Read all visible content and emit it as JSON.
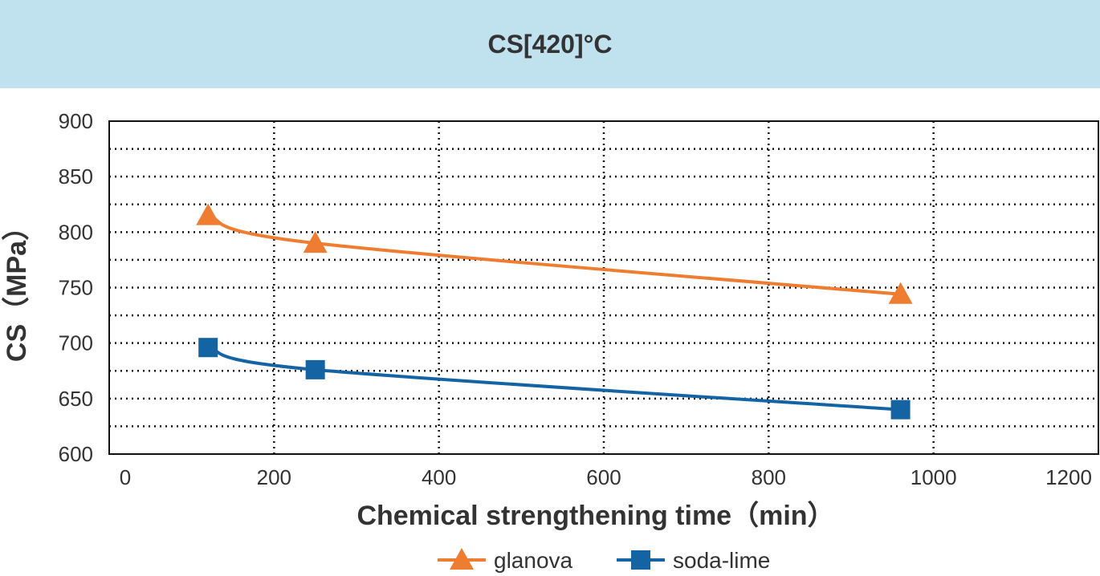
{
  "chart_data": {
    "type": "line",
    "title": "CS[420]°C",
    "xlabel": "Chemical strengthening time（min）",
    "ylabel": "CS（MPa）",
    "xlim": [
      0,
      1200
    ],
    "ylim": [
      600,
      900
    ],
    "xticks": [
      0,
      200,
      400,
      600,
      800,
      1000,
      1200
    ],
    "yticks": [
      600,
      650,
      700,
      750,
      800,
      850,
      900
    ],
    "grid": true,
    "legend_position": "bottom",
    "series": [
      {
        "name": "glanova",
        "color": "#ee7d31",
        "marker": "triangle",
        "x": [
          120,
          250,
          960
        ],
        "y": [
          815,
          790,
          744
        ]
      },
      {
        "name": "soda-lime",
        "color": "#1464a3",
        "marker": "square",
        "x": [
          120,
          250,
          960
        ],
        "y": [
          696,
          676,
          640
        ]
      }
    ]
  }
}
